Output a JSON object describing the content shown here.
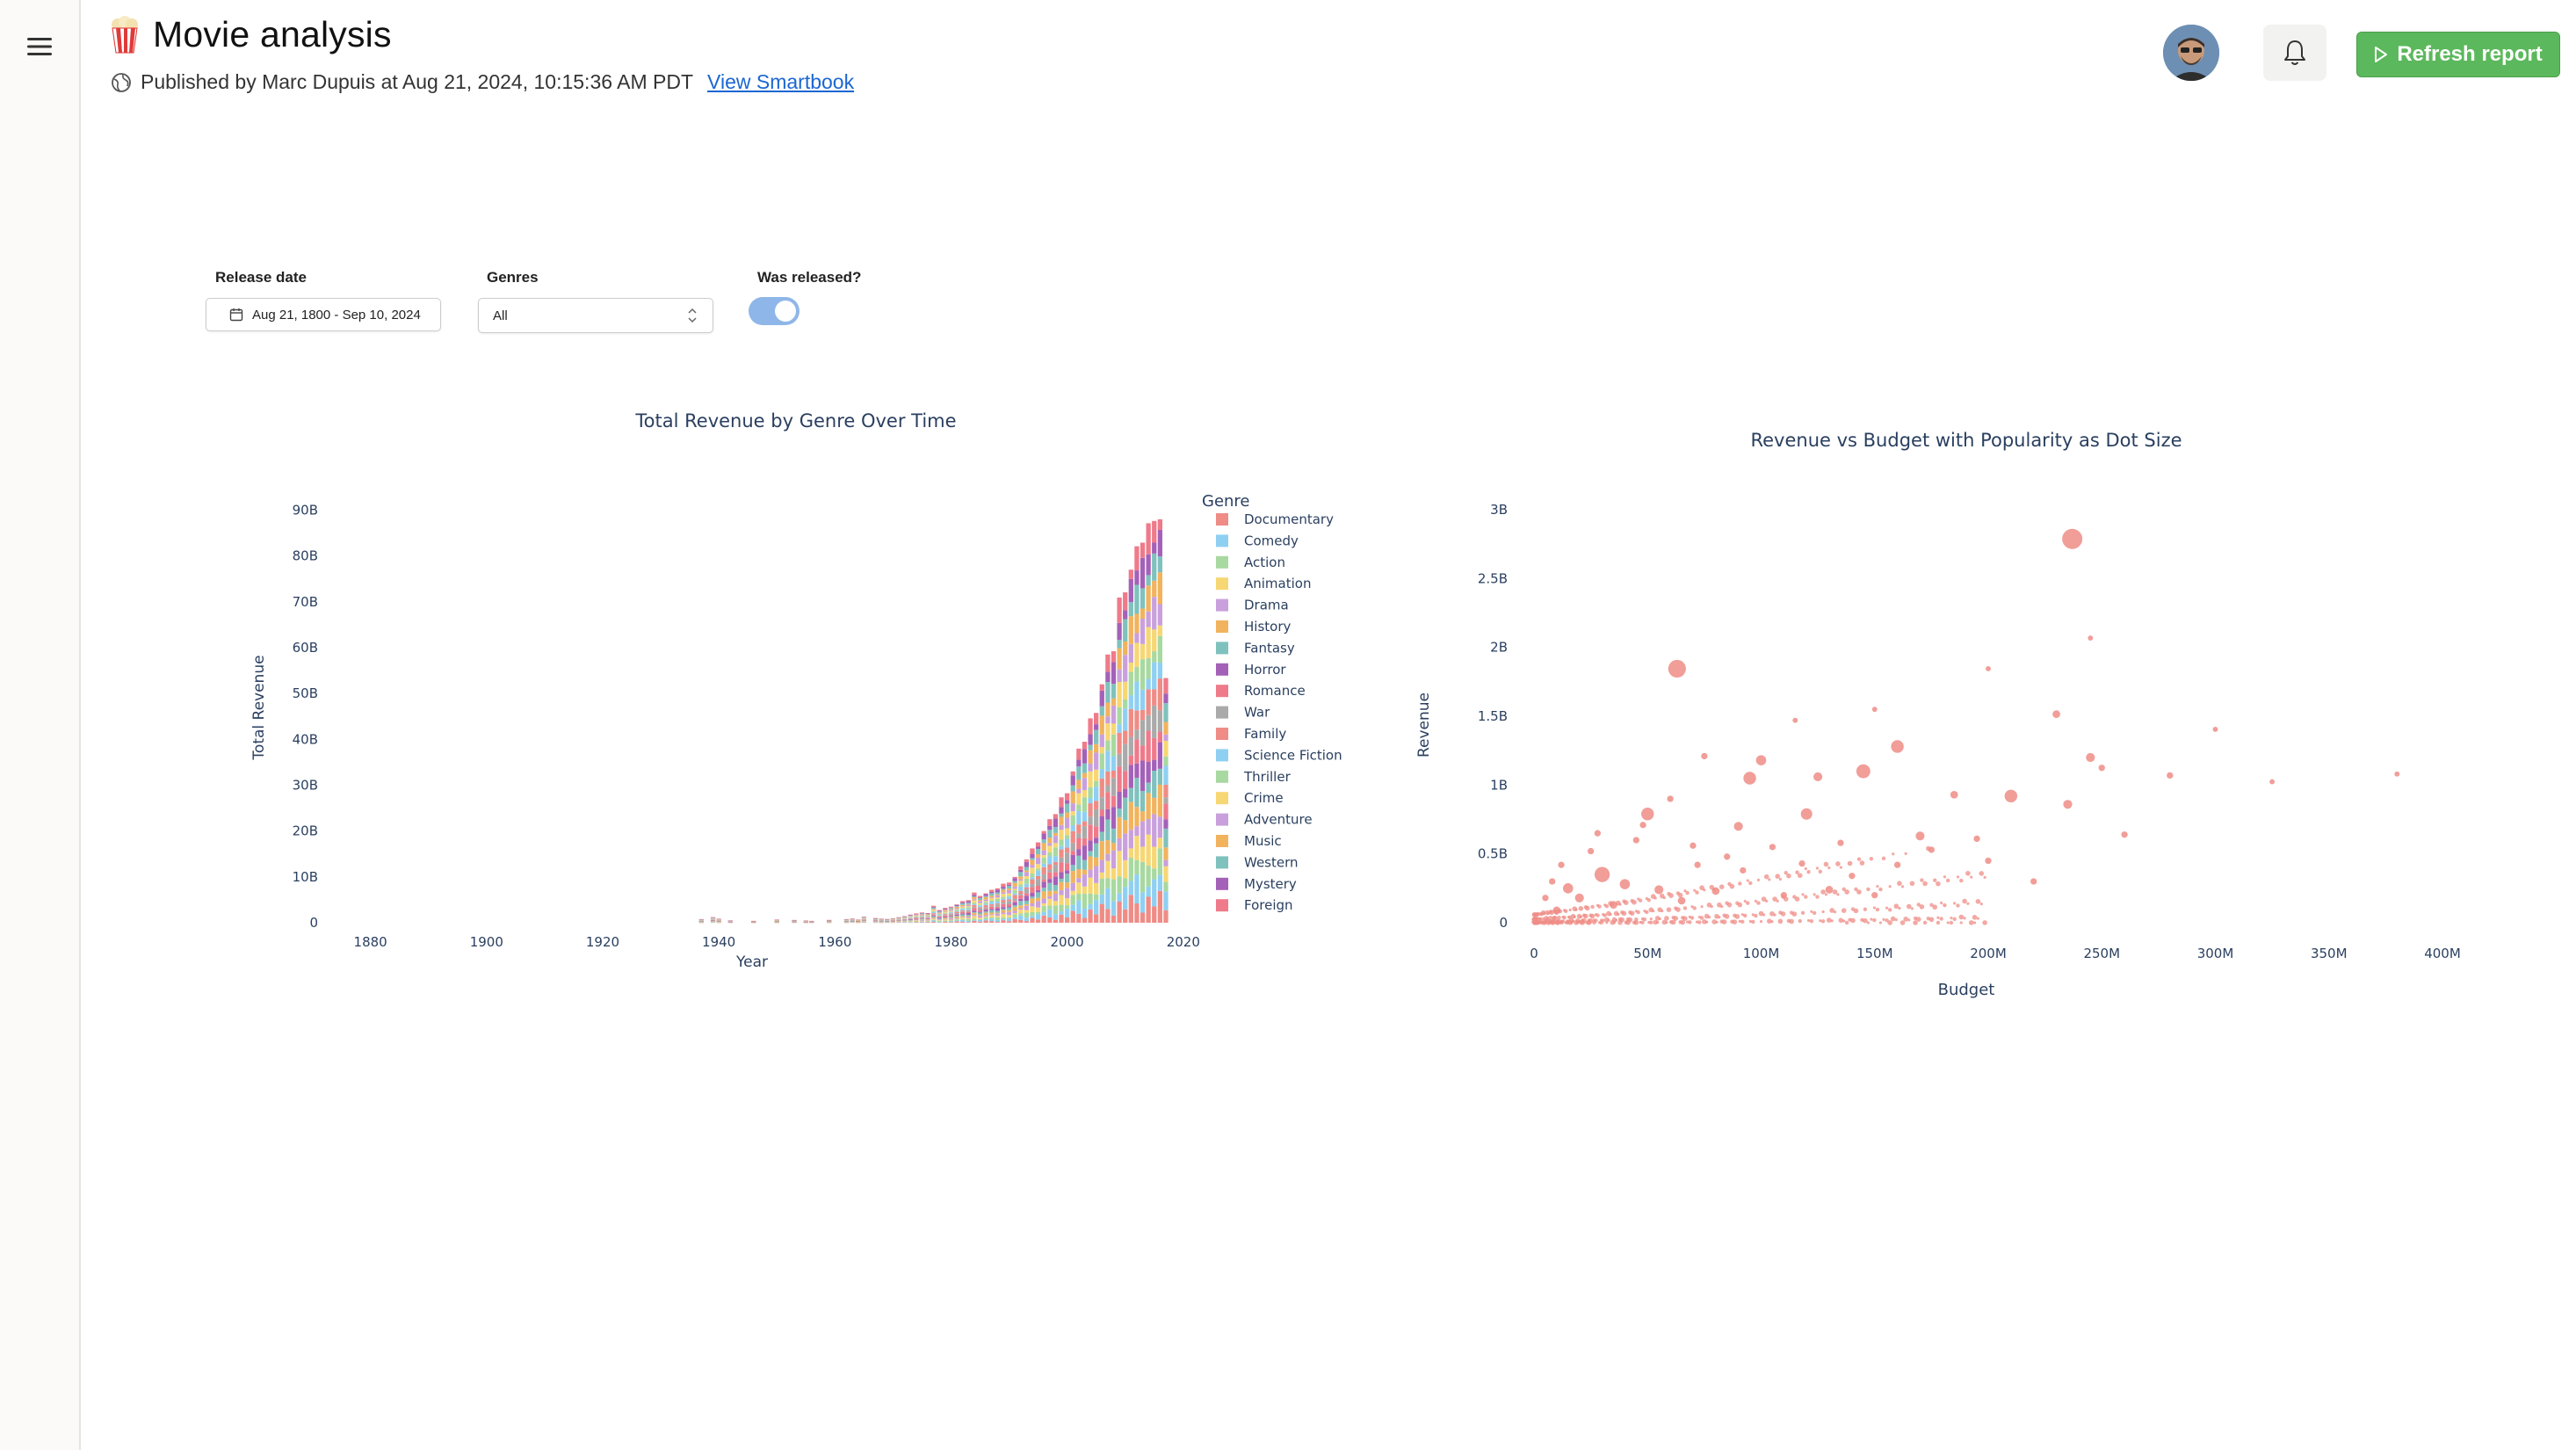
{
  "header": {
    "title": "Movie analysis",
    "published_text": "Published by Marc Dupuis at Aug 21, 2024, 10:15:36 AM PDT",
    "view_link": "View Smartbook",
    "refresh_label": "Refresh report"
  },
  "icons": {
    "menu": "hamburger-icon",
    "title": "popcorn-icon",
    "published": "globe-icon",
    "notifications": "bell-icon",
    "refresh": "play-icon",
    "date": "calendar-icon",
    "select": "chevron-updown-icon"
  },
  "colors": {
    "accent_green": "#5cb85c",
    "link_blue": "#1a66d2",
    "toggle_on": "#8fb6e8",
    "scatter_dot": "#ef8c86"
  },
  "filters": {
    "release_date": {
      "label": "Release date",
      "value": "Aug 21, 1800 - Sep 10, 2024"
    },
    "genres": {
      "label": "Genres",
      "value": "All"
    },
    "was_released": {
      "label": "Was released?",
      "checked": true
    }
  },
  "chart_data": [
    {
      "type": "bar",
      "stacked": true,
      "title": "Total Revenue by Genre Over Time",
      "xlabel": "Year",
      "ylabel": "Total Revenue",
      "xlim": [
        1874,
        2022
      ],
      "ylim": [
        0,
        92000000000
      ],
      "x_ticks": [
        1880,
        1900,
        1920,
        1940,
        1960,
        1980,
        2000,
        2020
      ],
      "y_ticks": [
        0,
        10000000000,
        20000000000,
        30000000000,
        40000000000,
        50000000000,
        60000000000,
        70000000000,
        80000000000,
        90000000000
      ],
      "y_tick_labels": [
        "0",
        "10B",
        "20B",
        "30B",
        "40B",
        "50B",
        "60B",
        "70B",
        "80B",
        "90B"
      ],
      "legend_title": "Genre",
      "legend_position": "right",
      "series": [
        {
          "name": "Documentary",
          "color": "#ef8c86"
        },
        {
          "name": "Comedy",
          "color": "#8fd0f2"
        },
        {
          "name": "Action",
          "color": "#a8d9a0"
        },
        {
          "name": "Animation",
          "color": "#f7d774"
        },
        {
          "name": "Drama",
          "color": "#c9a0dc"
        },
        {
          "name": "History",
          "color": "#f2b35e"
        },
        {
          "name": "Fantasy",
          "color": "#7fc1bd"
        },
        {
          "name": "Horror",
          "color": "#a461b8"
        },
        {
          "name": "Romance",
          "color": "#ef7a8a"
        },
        {
          "name": "War",
          "color": "#aaaaaa"
        },
        {
          "name": "Family",
          "color": "#ef8c86"
        },
        {
          "name": "Science Fiction",
          "color": "#8fd0f2"
        },
        {
          "name": "Thriller",
          "color": "#a8d9a0"
        },
        {
          "name": "Crime",
          "color": "#f7d774"
        },
        {
          "name": "Adventure",
          "color": "#c9a0dc"
        },
        {
          "name": "Music",
          "color": "#f2b35e"
        },
        {
          "name": "Western",
          "color": "#7fc1bd"
        },
        {
          "name": "Mystery",
          "color": "#a461b8"
        },
        {
          "name": "Foreign",
          "color": "#ef7a8a"
        }
      ],
      "totals": [
        [
          1937,
          0.8
        ],
        [
          1939,
          1.2
        ],
        [
          1940,
          0.9
        ],
        [
          1942,
          0.5
        ],
        [
          1946,
          0.4
        ],
        [
          1950,
          0.7
        ],
        [
          1953,
          0.6
        ],
        [
          1955,
          0.5
        ],
        [
          1956,
          0.4
        ],
        [
          1959,
          0.6
        ],
        [
          1962,
          0.8
        ],
        [
          1963,
          0.9
        ],
        [
          1964,
          0.7
        ],
        [
          1965,
          1.3
        ],
        [
          1967,
          1.0
        ],
        [
          1968,
          0.9
        ],
        [
          1969,
          0.8
        ],
        [
          1970,
          1.0
        ],
        [
          1971,
          1.2
        ],
        [
          1972,
          1.4
        ],
        [
          1973,
          1.8
        ],
        [
          1974,
          2.0
        ],
        [
          1975,
          2.3
        ],
        [
          1976,
          2.1
        ],
        [
          1977,
          3.6
        ],
        [
          1978,
          2.8
        ],
        [
          1979,
          3.2
        ],
        [
          1980,
          3.6
        ],
        [
          1981,
          4.0
        ],
        [
          1982,
          4.6
        ],
        [
          1983,
          5.0
        ],
        [
          1984,
          6.5
        ],
        [
          1985,
          6.0
        ],
        [
          1986,
          6.4
        ],
        [
          1987,
          7.0
        ],
        [
          1988,
          7.6
        ],
        [
          1989,
          8.4
        ],
        [
          1990,
          9.0
        ],
        [
          1991,
          10.0
        ],
        [
          1992,
          12.0
        ],
        [
          1993,
          14.0
        ],
        [
          1994,
          16.0
        ],
        [
          1995,
          18.0
        ],
        [
          1996,
          20.0
        ],
        [
          1997,
          22.0
        ],
        [
          1998,
          24.0
        ],
        [
          1999,
          27.0
        ],
        [
          2000,
          29.0
        ],
        [
          2001,
          33.0
        ],
        [
          2002,
          37.0
        ],
        [
          2003,
          40.0
        ],
        [
          2004,
          44.0
        ],
        [
          2005,
          47.0
        ],
        [
          2006,
          52.0
        ],
        [
          2007,
          57.0
        ],
        [
          2008,
          60.0
        ],
        [
          2009,
          70.0
        ],
        [
          2010,
          74.0
        ],
        [
          2011,
          77.0
        ],
        [
          2012,
          80.0
        ],
        [
          2013,
          84.0
        ],
        [
          2014,
          86.0
        ],
        [
          2015,
          90.0
        ],
        [
          2016,
          88.0
        ],
        [
          2017,
          52.0
        ]
      ]
    },
    {
      "type": "scatter",
      "title": "Revenue vs Budget with Popularity as Dot Size",
      "xlabel": "Budget",
      "ylabel": "Revenue",
      "xlim": [
        0,
        400000000
      ],
      "ylim": [
        0,
        3000000000
      ],
      "x_ticks": [
        0,
        50000000,
        100000000,
        150000000,
        200000000,
        250000000,
        300000000,
        350000000,
        400000000
      ],
      "x_tick_labels": [
        "0",
        "50M",
        "100M",
        "150M",
        "200M",
        "250M",
        "300M",
        "350M",
        "400M"
      ],
      "y_ticks": [
        0,
        500000000,
        1000000000,
        1500000000,
        2000000000,
        2500000000,
        3000000000
      ],
      "y_tick_labels": [
        "0",
        "0.5B",
        "1B",
        "1.5B",
        "2B",
        "2.5B",
        "3B"
      ],
      "points": [
        [
          237,
          2788,
          14
        ],
        [
          63,
          1845,
          12
        ],
        [
          160,
          1280,
          8
        ],
        [
          75,
          1210,
          3
        ],
        [
          100,
          1180,
          6
        ],
        [
          145,
          1100,
          9
        ],
        [
          125,
          1060,
          5
        ],
        [
          95,
          1050,
          8
        ],
        [
          120,
          790,
          7
        ],
        [
          170,
          630,
          5
        ],
        [
          185,
          930,
          4
        ],
        [
          210,
          920,
          8
        ],
        [
          230,
          1515,
          4
        ],
        [
          245,
          1200,
          5
        ],
        [
          250,
          1125,
          3
        ],
        [
          235,
          860,
          5
        ],
        [
          260,
          640,
          3
        ],
        [
          280,
          1070,
          3
        ],
        [
          300,
          1405,
          2
        ],
        [
          325,
          1024,
          2
        ],
        [
          380,
          1080,
          2
        ],
        [
          245,
          2068,
          2
        ],
        [
          200,
          1845,
          2
        ],
        [
          50,
          790,
          8
        ],
        [
          60,
          900,
          3
        ],
        [
          90,
          700,
          5
        ],
        [
          30,
          350,
          10
        ],
        [
          40,
          280,
          6
        ],
        [
          15,
          250,
          6
        ],
        [
          20,
          180,
          5
        ],
        [
          10,
          90,
          4
        ],
        [
          35,
          130,
          4
        ],
        [
          55,
          240,
          5
        ],
        [
          65,
          160,
          4
        ],
        [
          80,
          230,
          4
        ],
        [
          110,
          200,
          3
        ],
        [
          130,
          240,
          4
        ],
        [
          150,
          200,
          3
        ],
        [
          140,
          340,
          3
        ],
        [
          160,
          420,
          3
        ],
        [
          200,
          450,
          3
        ],
        [
          220,
          300,
          3
        ],
        [
          150,
          1550,
          2
        ],
        [
          115,
          1470,
          2
        ],
        [
          25,
          520,
          3
        ],
        [
          45,
          600,
          3
        ],
        [
          70,
          560,
          3
        ],
        [
          85,
          480,
          3
        ],
        [
          105,
          550,
          3
        ],
        [
          135,
          580,
          3
        ],
        [
          175,
          530,
          3
        ],
        [
          195,
          610,
          3
        ],
        [
          12,
          420,
          3
        ],
        [
          8,
          300,
          3
        ],
        [
          5,
          180,
          3
        ],
        [
          28,
          650,
          3
        ],
        [
          48,
          710,
          3
        ],
        [
          72,
          420,
          3
        ],
        [
          92,
          380,
          3
        ],
        [
          118,
          430,
          3
        ]
      ]
    }
  ]
}
